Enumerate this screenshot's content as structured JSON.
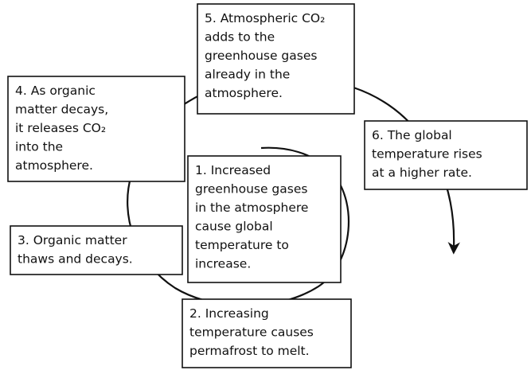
{
  "nodes": [
    {
      "lines": [
        "1. Increased",
        "greenhouse gases",
        "in the atmosphere",
        "cause global",
        "temperature to",
        "increase."
      ]
    },
    {
      "lines": [
        "2. Increasing",
        "temperature causes",
        "permafrost to melt."
      ]
    },
    {
      "lines": [
        "3. Organic matter",
        "thaws and decays."
      ]
    },
    {
      "lines": [
        "4. As organic",
        "matter decays,",
        "it releases CO₂",
        "into the",
        "atmosphere."
      ]
    },
    {
      "lines": [
        "5. Atmospheric CO₂",
        "adds to the",
        "greenhouse gases",
        "already in the",
        "atmosphere."
      ]
    },
    {
      "lines": [
        "6. The global",
        "temperature rises",
        "at a higher rate."
      ]
    }
  ]
}
